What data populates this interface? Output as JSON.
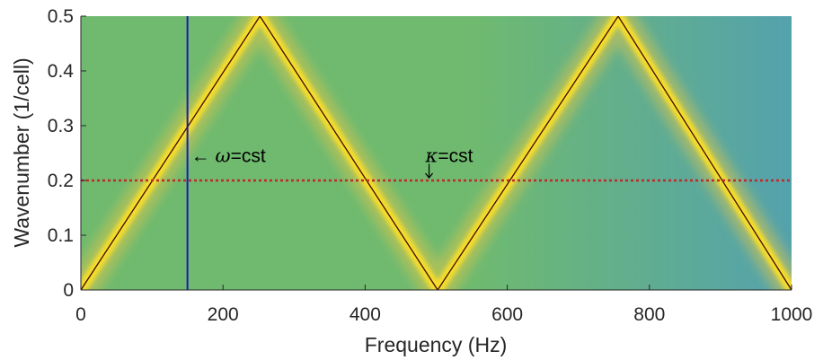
{
  "chart_data": {
    "type": "heatmap",
    "title": "",
    "xlabel": "Frequency (Hz)",
    "ylabel": "Wavenumber (1/cell)",
    "xlim": [
      0,
      1000
    ],
    "ylim": [
      0,
      0.5
    ],
    "xticks": [
      0,
      200,
      400,
      600,
      800,
      1000
    ],
    "yticks": [
      0,
      0.1,
      0.2,
      0.3,
      0.4,
      0.5
    ],
    "xtick_labels": [
      "0",
      "200",
      "400",
      "600",
      "800",
      "1000"
    ],
    "ytick_labels": [
      "0",
      "0.1",
      "0.2",
      "0.3",
      "0.4",
      "0.5"
    ],
    "grid": false,
    "legend": "none",
    "dispersion_curve": {
      "x": [
        0,
        252,
        502,
        756,
        1000
      ],
      "y": [
        0,
        0.5,
        0,
        0.5,
        0
      ]
    },
    "constant_frequency_line": {
      "x": 150,
      "color": "#1a1ab4"
    },
    "constant_wavenumber_line": {
      "y": 0.2,
      "color": "#c0282a",
      "style": "dotted"
    },
    "annotations": [
      {
        "arrow": "←",
        "symbol": "ω",
        "text": "=cst",
        "x": 150,
        "y": 0.245
      },
      {
        "symbol": "κ",
        "text": "=cst",
        "x": 495,
        "y": 0.245
      }
    ],
    "colors": {
      "background_low": "#6fba6f",
      "background_high": "#54a2ad",
      "ridge": "#f6dd2a",
      "ridge_edge": "#d9c44a",
      "curve": "#3a0d05"
    }
  }
}
